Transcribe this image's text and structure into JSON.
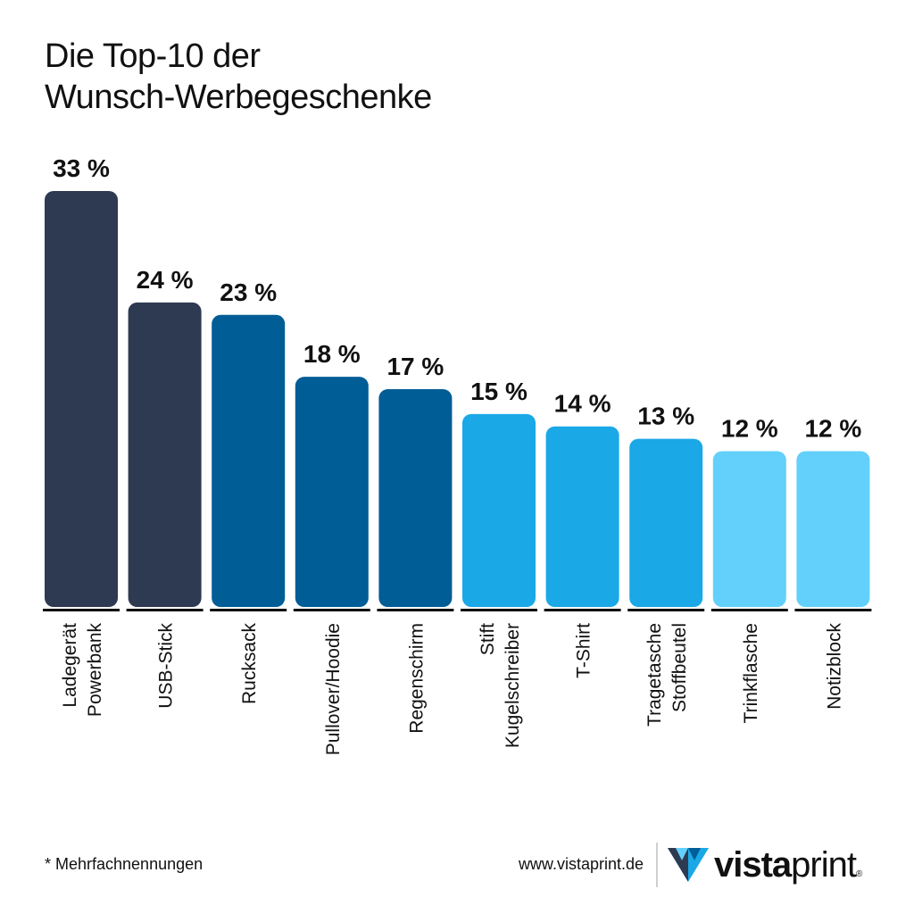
{
  "title": {
    "line1": "Die Top-10 der",
    "line2": "Wunsch-Werbegeschenke"
  },
  "chart_data": {
    "type": "bar",
    "title": "Die Top-10 der Wunsch-Werbegeschenke",
    "unit": "%",
    "categories": [
      [
        "Ladegerät",
        "Powerbank"
      ],
      [
        "USB-Stick"
      ],
      [
        "Rucksack"
      ],
      [
        "Pullover/Hoodie"
      ],
      [
        "Regenschirm"
      ],
      [
        "Stift",
        "Kugelschreiber"
      ],
      [
        "T-Shirt"
      ],
      [
        "Tragetasche",
        "Stoffbeutel"
      ],
      [
        "Trinkflasche"
      ],
      [
        "Notizblock"
      ]
    ],
    "values": [
      33,
      24,
      23,
      18,
      17,
      15,
      14,
      13,
      12,
      12
    ],
    "value_labels": [
      "33 %",
      "24 %",
      "23 %",
      "18 %",
      "17 %",
      "15 %",
      "14 %",
      "13 %",
      "12 %",
      "12 %"
    ],
    "colors": [
      "#2e3a52",
      "#2e3a52",
      "#005d96",
      "#005d96",
      "#005d96",
      "#1aa8e6",
      "#1aa8e6",
      "#1aa8e6",
      "#62d0fa",
      "#62d0fa"
    ],
    "ylim": [
      0,
      33
    ],
    "grid": false,
    "legend": "none"
  },
  "footer": {
    "footnote": "* Mehrfachnennungen",
    "website": "www.vistaprint.de",
    "logo_bold": "vista",
    "logo_light": "print",
    "logo_mark": "®"
  }
}
